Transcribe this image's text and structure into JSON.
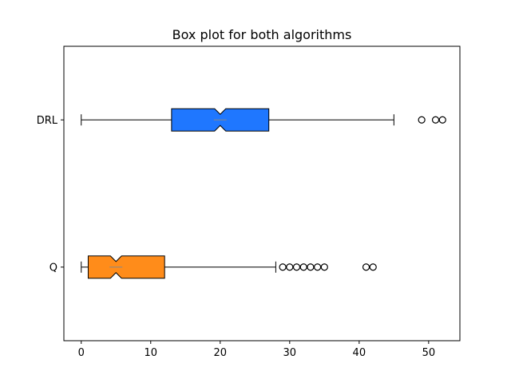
{
  "chart_data": {
    "type": "boxplot",
    "title": "Box plot for both algorithms",
    "xlabel": "",
    "ylabel": "",
    "xlim": [
      -2.5,
      54.5
    ],
    "xticks": [
      0,
      10,
      20,
      30,
      40,
      50
    ],
    "notched": true,
    "orientation": "horizontal",
    "grid": false,
    "series": [
      {
        "name": "DRL",
        "color": "#1f77ff",
        "whisker_low": 0,
        "q1": 13,
        "median": 20,
        "q3": 27,
        "whisker_high": 45,
        "notch_low": 19.2,
        "notch_high": 20.8,
        "outliers": [
          49,
          51,
          52
        ]
      },
      {
        "name": "Q",
        "color": "#ff8c1a",
        "whisker_low": 0,
        "q1": 1,
        "median": 5,
        "q3": 12,
        "whisker_high": 28,
        "notch_low": 4.2,
        "notch_high": 5.8,
        "outliers": [
          29,
          30,
          31,
          32,
          33,
          34,
          35,
          41,
          42
        ]
      }
    ]
  }
}
